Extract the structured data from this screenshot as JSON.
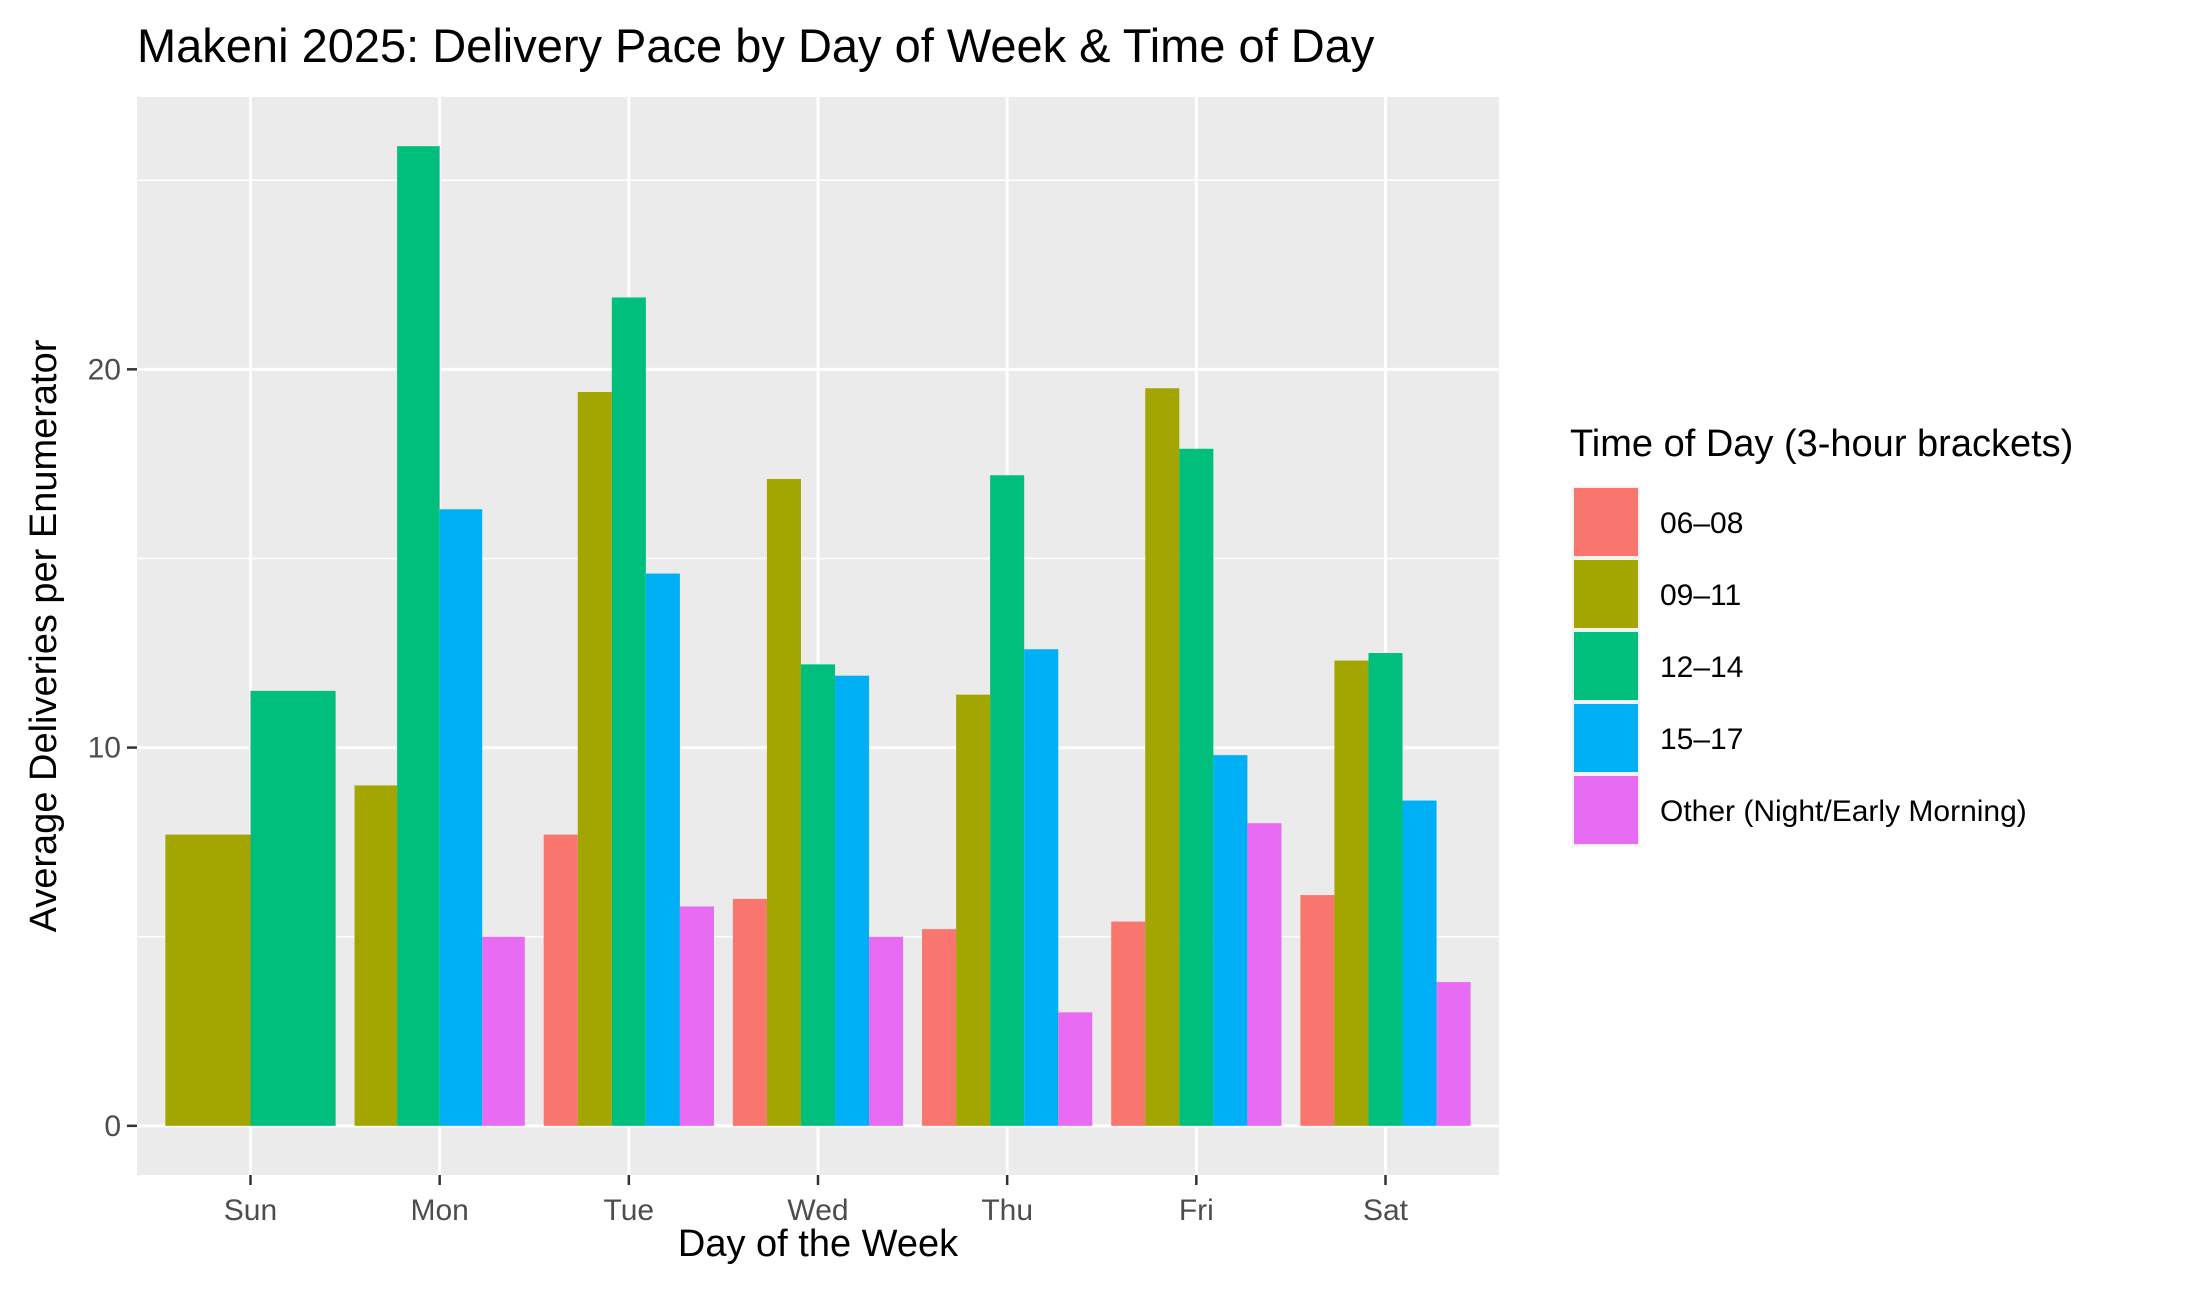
{
  "chart_data": {
    "type": "bar",
    "title": "Makeni 2025: Delivery Pace by Day of Week & Time of Day",
    "xlabel": "Day of the Week",
    "ylabel": "Average Deliveries per Enumerator",
    "ylim": [
      -1.3,
      27.2
    ],
    "yticks": [
      0,
      10,
      20
    ],
    "ytick_labels": [
      "0",
      "10",
      "20"
    ],
    "grid": true,
    "legend_title": "Time of Day (3-hour brackets)",
    "legend_position": "right",
    "categories": [
      "Sun",
      "Mon",
      "Tue",
      "Wed",
      "Thu",
      "Fri",
      "Sat"
    ],
    "series": [
      {
        "name": "06–08",
        "color": "#F8766D",
        "values": [
          null,
          null,
          7.7,
          6.0,
          5.2,
          5.4,
          6.1
        ]
      },
      {
        "name": "09–11",
        "color": "#A3A500",
        "values": [
          7.7,
          9.0,
          19.4,
          17.1,
          11.4,
          19.5,
          12.3
        ]
      },
      {
        "name": "12–14",
        "color": "#00BF7D",
        "values": [
          11.5,
          25.9,
          21.9,
          12.2,
          17.2,
          17.9,
          12.5
        ]
      },
      {
        "name": "15–17",
        "color": "#00B0F6",
        "values": [
          null,
          16.3,
          14.6,
          11.9,
          12.6,
          9.8,
          8.6
        ]
      },
      {
        "name": "Other (Night/Early Morning)",
        "color": "#E76BF3",
        "values": [
          null,
          5.0,
          5.8,
          5.0,
          3.0,
          8.0,
          3.8
        ]
      }
    ]
  }
}
